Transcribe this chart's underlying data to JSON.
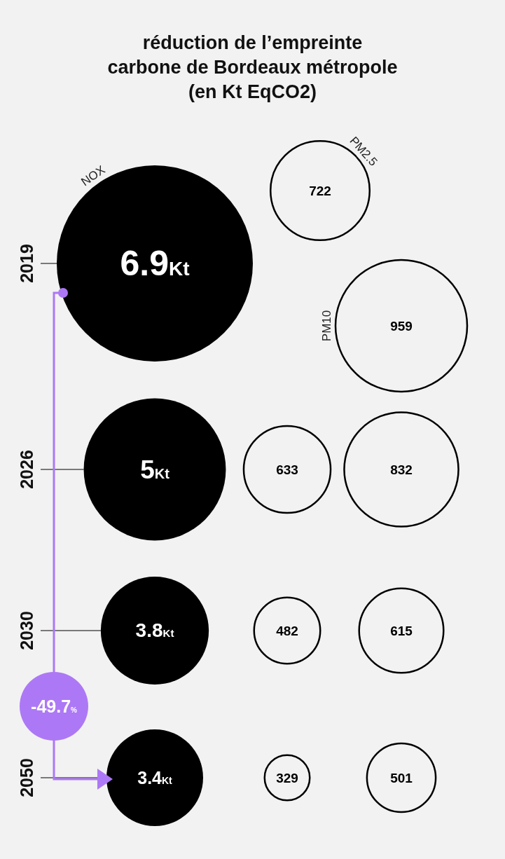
{
  "chart_data": {
    "type": "other",
    "title": "réduction de l’empreinte\ncarbone de Bordeaux métropole\n(en Kt EqCO2)",
    "categories": [
      "2019",
      "2026",
      "2030",
      "2050"
    ],
    "series": [
      {
        "name": "NOX",
        "color": "#000000",
        "values": [
          6.9,
          5,
          3.8,
          3.4
        ],
        "value_labels": [
          "6.9Kt",
          "5Kt",
          "3.8Kt",
          "3.4Kt"
        ]
      },
      {
        "name": "PM2.5",
        "color": "#000000",
        "values": [
          722,
          633,
          482,
          329
        ],
        "value_labels": [
          "722",
          "633",
          "482",
          "329"
        ]
      },
      {
        "name": "PM10",
        "color": "#000000",
        "values": [
          959,
          832,
          615,
          501
        ],
        "value_labels": [
          "959",
          "832",
          "615",
          "501"
        ]
      }
    ],
    "annotations": [
      "-49.7%"
    ]
  }
}
